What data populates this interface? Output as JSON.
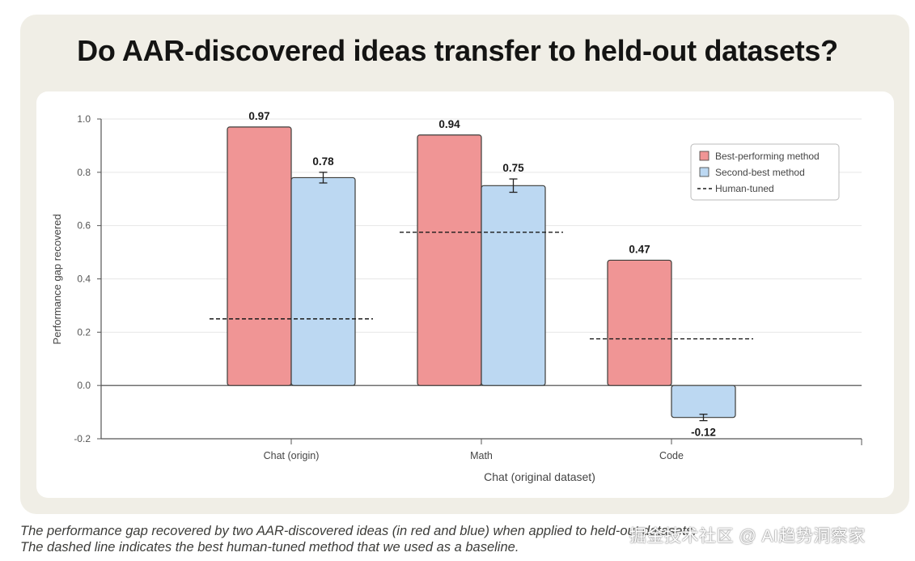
{
  "title": "Do AAR-discovered ideas transfer to held-out datasets?",
  "caption_lines": [
    "The performance gap recovered by two AAR-discovered ideas (in red and blue) when applied to held-out datasets.",
    "The dashed line indicates the best human-tuned method that we used as a baseline."
  ],
  "watermark": "掘金技术社区 @ AI趋势洞察家",
  "colors": {
    "best": "#f09595",
    "second": "#bcd8f2",
    "bar_stroke": "#3d3d3a",
    "grid": "#e6e6e6",
    "axis": "#555555"
  },
  "chart_data": {
    "type": "bar",
    "xlabel": "Chat (original dataset)",
    "ylabel": "Performance gap recovered",
    "ylim": [
      -0.2,
      1.0
    ],
    "yticks": [
      "1.0",
      "0.8",
      "0.6",
      "0.4",
      "0.2",
      "0.0",
      "-0.2"
    ],
    "categories": [
      "Chat (origin)",
      "Math",
      "Code"
    ],
    "series": [
      {
        "name": "Best-performing method",
        "values": [
          0.97,
          0.94,
          0.47
        ],
        "labels": [
          "0.97",
          "0.94",
          "0.47"
        ],
        "errors": [
          0,
          0,
          0
        ]
      },
      {
        "name": "Second-best method",
        "values": [
          0.78,
          0.75,
          -0.12
        ],
        "labels": [
          "0.78",
          "0.75",
          "-0.12"
        ],
        "errors": [
          0.02,
          0.025,
          0.012
        ]
      }
    ],
    "human_tuned": {
      "name": "Human-tuned",
      "values": [
        0.25,
        0.575,
        0.175
      ]
    },
    "grid": true,
    "legend_position": "top-right"
  }
}
